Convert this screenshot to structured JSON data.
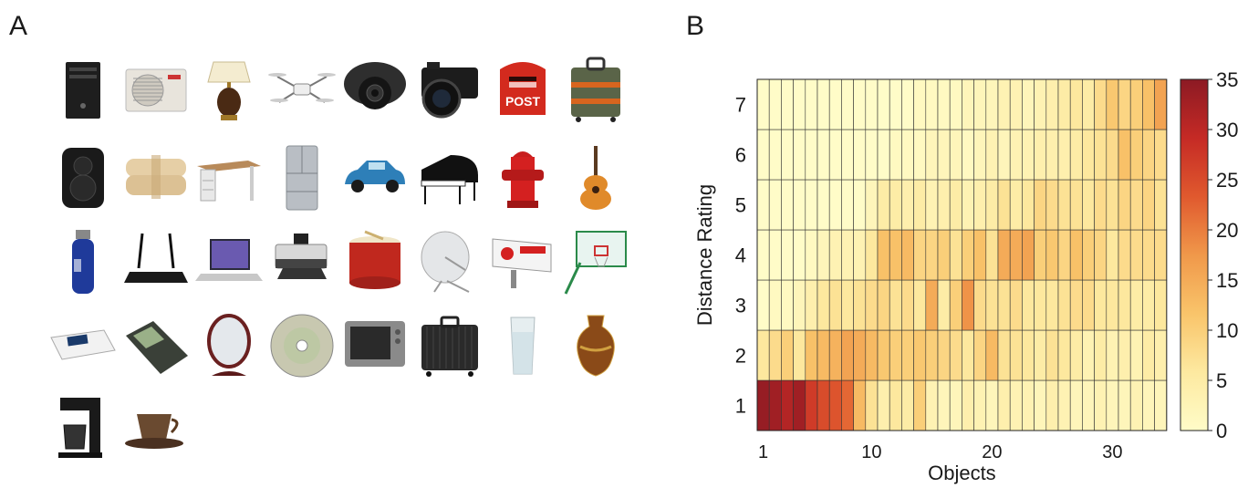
{
  "panel_a": {
    "letter": "A",
    "objects": [
      {
        "name": "computer-tower-icon"
      },
      {
        "name": "air-conditioner-icon"
      },
      {
        "name": "table-lamp-icon"
      },
      {
        "name": "drone-icon"
      },
      {
        "name": "security-camera-icon"
      },
      {
        "name": "camera-icon"
      },
      {
        "name": "mailbox-icon"
      },
      {
        "name": "luggage-bag-icon"
      },
      {
        "name": "speaker-icon"
      },
      {
        "name": "blanket-icon"
      },
      {
        "name": "desk-icon"
      },
      {
        "name": "refrigerator-icon"
      },
      {
        "name": "car-icon"
      },
      {
        "name": "piano-icon"
      },
      {
        "name": "fire-hydrant-icon"
      },
      {
        "name": "guitar-icon"
      },
      {
        "name": "water-bottle-icon"
      },
      {
        "name": "router-icon"
      },
      {
        "name": "laptop-icon"
      },
      {
        "name": "printer-icon"
      },
      {
        "name": "drum-icon"
      },
      {
        "name": "satellite-dish-icon"
      },
      {
        "name": "billboard-icon"
      },
      {
        "name": "basketball-hoop-icon"
      },
      {
        "name": "remote-control-icon"
      },
      {
        "name": "mobile-phone-icon"
      },
      {
        "name": "mirror-icon"
      },
      {
        "name": "cd-disc-icon"
      },
      {
        "name": "television-icon"
      },
      {
        "name": "suitcase-icon"
      },
      {
        "name": "glass-icon"
      },
      {
        "name": "vase-icon"
      },
      {
        "name": "coffee-maker-icon"
      },
      {
        "name": "coffee-cup-icon"
      }
    ],
    "mailbox_text": "POST"
  },
  "panel_b": {
    "letter": "B"
  },
  "chart_data": {
    "type": "heatmap",
    "xlabel": "Objects",
    "ylabel": "Distance Rating",
    "x_ticks": [
      1,
      10,
      20,
      30
    ],
    "y_ticks": [
      1,
      2,
      3,
      4,
      5,
      6,
      7
    ],
    "n_objects": 34,
    "colorbar_range": [
      0,
      35
    ],
    "colorbar_ticks": [
      0,
      5,
      10,
      15,
      20,
      25,
      30,
      35
    ],
    "colormap": [
      "#fffcc8",
      "#fde9a0",
      "#f9c46a",
      "#f0984a",
      "#e0592e",
      "#c52a25",
      "#8c1a24"
    ],
    "values": [
      [
        34,
        33,
        31,
        33,
        27,
        25,
        24,
        22,
        13,
        7,
        4,
        6,
        5,
        10,
        3,
        2,
        2,
        4,
        3,
        2,
        4,
        3,
        3,
        2,
        4,
        3,
        2,
        2,
        3,
        2,
        2,
        3,
        2,
        2
      ],
      [
        6,
        8,
        10,
        6,
        12,
        13,
        14,
        16,
        15,
        13,
        11,
        10,
        10,
        11,
        10,
        9,
        8,
        6,
        9,
        13,
        7,
        7,
        6,
        5,
        7,
        6,
        5,
        3,
        5,
        3,
        4,
        3,
        5,
        4
      ],
      [
        0,
        1,
        1,
        2,
        4,
        6,
        7,
        6,
        7,
        8,
        9,
        7,
        8,
        6,
        15,
        5,
        10,
        18,
        8,
        7,
        7,
        8,
        6,
        6,
        6,
        7,
        8,
        8,
        6,
        6,
        6,
        5,
        5,
        6
      ],
      [
        0,
        0,
        0,
        0,
        1,
        2,
        3,
        3,
        3,
        6,
        12,
        12,
        13,
        9,
        9,
        10,
        7,
        10,
        12,
        7,
        15,
        15,
        16,
        10,
        11,
        9,
        12,
        10,
        9,
        6,
        8,
        8,
        8,
        8
      ],
      [
        0,
        0,
        0,
        0,
        0,
        0,
        0,
        0,
        0,
        2,
        5,
        5,
        4,
        5,
        3,
        4,
        5,
        3,
        4,
        5,
        7,
        5,
        6,
        9,
        8,
        7,
        7,
        6,
        8,
        7,
        9,
        8,
        9,
        7
      ],
      [
        0,
        0,
        0,
        0,
        0,
        0,
        0,
        0,
        0,
        0,
        0,
        1,
        1,
        1,
        2,
        2,
        2,
        1,
        2,
        3,
        2,
        3,
        3,
        4,
        4,
        4,
        5,
        6,
        7,
        8,
        12,
        10,
        9,
        8
      ],
      [
        0,
        0,
        0,
        0,
        0,
        0,
        0,
        0,
        0,
        0,
        0,
        0,
        0,
        1,
        1,
        1,
        1,
        2,
        2,
        2,
        3,
        3,
        2,
        3,
        4,
        5,
        6,
        5,
        8,
        11,
        9,
        10,
        12,
        16
      ]
    ]
  }
}
